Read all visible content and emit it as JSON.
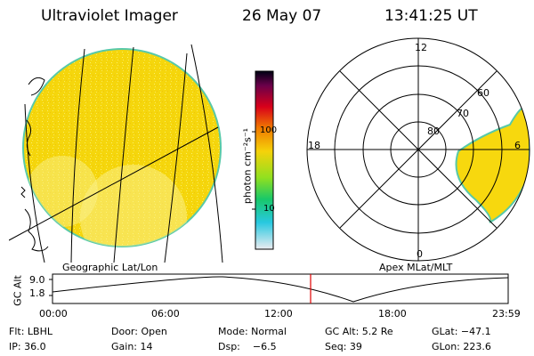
{
  "header": {
    "title": "Ultraviolet Imager",
    "date": "26 May 07",
    "time": "13:41:25 UT"
  },
  "colorbar": {
    "unit_label": "photon cm⁻²s⁻¹",
    "ticks": [
      "100",
      "10"
    ]
  },
  "polar_plot": {
    "hour_labels": [
      "12",
      "18",
      "6",
      "0"
    ],
    "lat_labels": [
      "80",
      "70",
      "60"
    ]
  },
  "maps": {
    "left_caption": "Geographic Lat/Lon",
    "right_caption": "Apex MLat/MLT"
  },
  "timeline": {
    "y_label": "GC Alt",
    "y_ticks": [
      "9.0",
      "1.8"
    ],
    "x_ticks": [
      "00:00",
      "06:00",
      "12:00",
      "18:00",
      "23:59"
    ]
  },
  "info": {
    "row1": [
      "Flt: LBHL",
      "Door: Open",
      "Mode: Normal",
      "GC Alt: 5.2 Re",
      "GLat: −47.1"
    ],
    "row2": [
      "IP: 36.0",
      "Gain: 14",
      "Dsp:    −6.5",
      "Seq: 39",
      "GLon: 223.6"
    ]
  },
  "colors": {
    "disk_fill": "#f7d80e",
    "disk_edge": "#58c9a8",
    "marker": "#e00000"
  }
}
